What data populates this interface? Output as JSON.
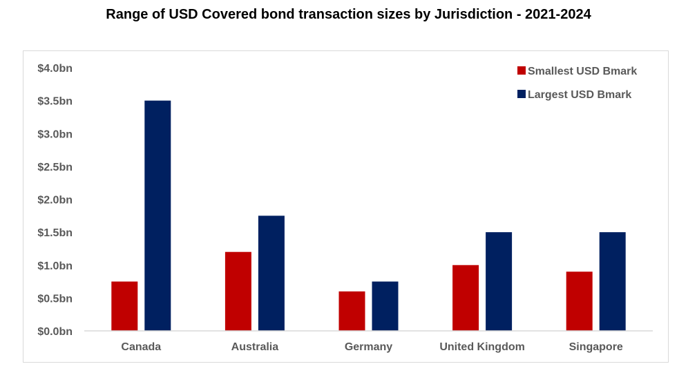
{
  "chart_data": {
    "type": "bar",
    "title": "Range of USD Covered bond transaction sizes by Jurisdiction - 2021-2024",
    "categories": [
      "Canada",
      "Australia",
      "Germany",
      "United Kingdom",
      "Singapore"
    ],
    "series": [
      {
        "name": "Smallest USD Bmark",
        "color": "#c00000",
        "values": [
          0.75,
          1.2,
          0.6,
          1.0,
          0.9
        ]
      },
      {
        "name": "Largest USD Bmark",
        "color": "#002060",
        "values": [
          3.5,
          1.75,
          0.75,
          1.5,
          1.5
        ]
      }
    ],
    "ylim": [
      0,
      4
    ],
    "yticks": [
      {
        "value": 0,
        "label": "$0.0bn"
      },
      {
        "value": 0.5,
        "label": "$0.5bn"
      },
      {
        "value": 1,
        "label": "$1.0bn"
      },
      {
        "value": 1.5,
        "label": "$1.5bn"
      },
      {
        "value": 2,
        "label": "$2.0bn"
      },
      {
        "value": 2.5,
        "label": "$2.5bn"
      },
      {
        "value": 3,
        "label": "$3.0bn"
      },
      {
        "value": 3.5,
        "label": "$3.5bn"
      },
      {
        "value": 4,
        "label": "$4.0bn"
      }
    ],
    "xlabel": "",
    "ylabel": "",
    "grid": false,
    "legend_position": "top-right"
  }
}
